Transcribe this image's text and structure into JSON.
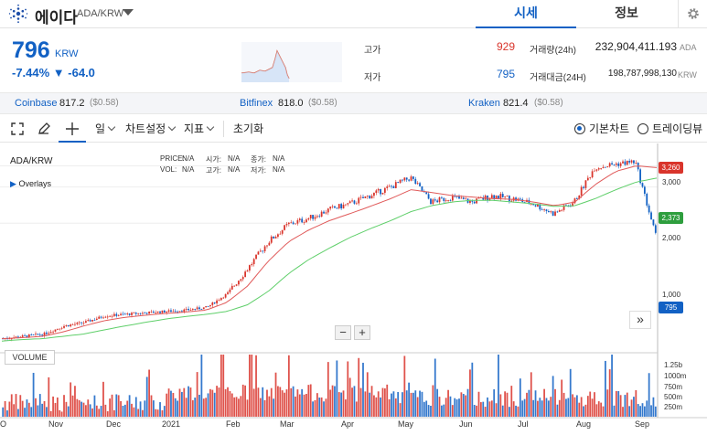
{
  "header": {
    "coin_name": "에이다",
    "pair": "ADA/KRW",
    "tabs": [
      {
        "label": "시세"
      },
      {
        "label": "정보"
      }
    ]
  },
  "summary": {
    "price": "796",
    "unit": "KRW",
    "change": "-7.44% ▼ -64.0",
    "high_label": "고가",
    "high_value": "929",
    "low_label": "저가",
    "low_value": "795",
    "volume_label": "거래량(24h)",
    "volume_value": "232,904,411.193",
    "volume_unit": "ADA",
    "amount_label": "거래대금(24H)",
    "amount_value": "198,787,998,130",
    "amount_unit": "KRW"
  },
  "exchanges": [
    {
      "name": "Coinbase",
      "price": "817.2",
      "usd": "($0.58)"
    },
    {
      "name": "Bitfinex",
      "price": "818.0",
      "usd": "($0.58)"
    },
    {
      "name": "Kraken",
      "price": "821.4",
      "usd": "($0.58)"
    }
  ],
  "toolbar": {
    "period_label": "일",
    "settings_label": "차트설정",
    "indicator_label": "지표",
    "reset_label": "초기화",
    "basic_chart_label": "기본차트",
    "tradingview_label": "트레이딩뷰"
  },
  "chart_overlay": {
    "symbol": "ADA/KRW",
    "overlays_label": "Overlays",
    "price_label": "PRICE:",
    "open_label": "시가:",
    "close_label": "종가:",
    "vol_label": "VOL:",
    "high_label": "고가:",
    "low_label": "저가:",
    "na": "N/A",
    "volume_tag": "VOLUME",
    "zoom_out": "−",
    "zoom_in": "+",
    "scroll_right": "»"
  },
  "chart_data": {
    "type": "candlestick",
    "x_tick_labels": [
      "Nov",
      "Dec",
      "2021",
      "Feb",
      "Mar",
      "Apr",
      "May",
      "Jun",
      "Jul",
      "Aug",
      "Sep"
    ],
    "y_tick_labels": [
      "1,000",
      "2,000",
      "3,000"
    ],
    "y_scale": "log",
    "price_tags": [
      {
        "value": "3,260",
        "color": "#d9342b"
      },
      {
        "value": "2,373",
        "color": "#2e9e3e"
      },
      {
        "value": "795",
        "color": "#1261c4"
      }
    ],
    "volume_axis_labels": [
      "1.25b",
      "1000m",
      "750m",
      "500m",
      "250m"
    ],
    "series": [
      {
        "values": [
          110,
          115,
          120,
          140,
          150,
          170,
          175,
          180,
          185,
          190,
          200,
          260,
          420,
          700,
          980,
          1100,
          1300,
          1450,
          1700,
          2000,
          2400,
          1500,
          1650,
          1500,
          1700,
          1600,
          1450,
          1200,
          1500,
          2900,
          3100,
          3260,
          796
        ]
      }
    ],
    "ma_short": [
      110,
      112,
      115,
      125,
      140,
      155,
      165,
      172,
      178,
      183,
      190,
      220,
      300,
      480,
      700,
      880,
      1050,
      1200,
      1380,
      1600,
      1900,
      1800,
      1700,
      1650,
      1600,
      1580,
      1500,
      1400,
      1500,
      2100,
      2700,
      3000,
      2900
    ],
    "ma_long": [
      105,
      108,
      110,
      115,
      120,
      130,
      140,
      150,
      160,
      168,
      175,
      185,
      210,
      270,
      380,
      500,
      620,
      760,
      900,
      1050,
      1250,
      1400,
      1500,
      1550,
      1550,
      1500,
      1450,
      1380,
      1400,
      1600,
      1900,
      2200,
      2373
    ]
  }
}
